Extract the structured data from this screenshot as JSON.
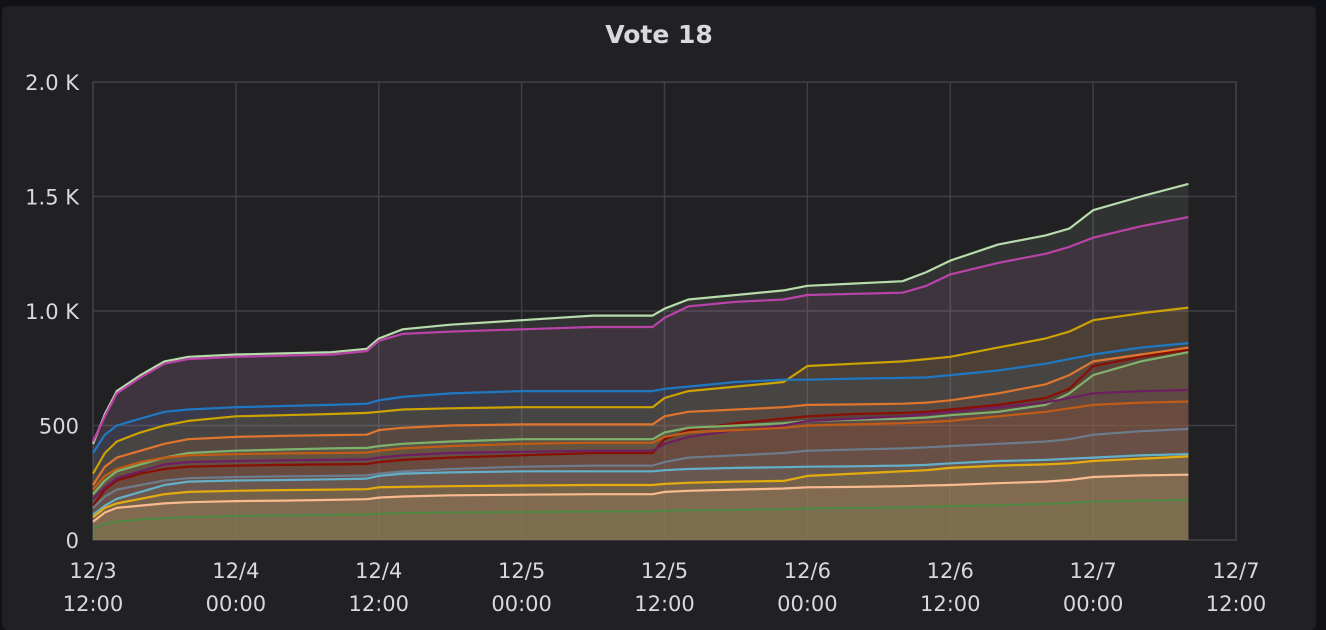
{
  "panel": {
    "title": "Vote 18"
  },
  "chart_data": {
    "type": "area",
    "title": "Vote 18",
    "xlabel": "",
    "ylabel": "",
    "ylim": [
      0,
      2000
    ],
    "grid": true,
    "legend": "none",
    "y_ticks": [
      {
        "value": 0,
        "label": "0"
      },
      {
        "value": 500,
        "label": "500"
      },
      {
        "value": 1000,
        "label": "1.0 K"
      },
      {
        "value": 1500,
        "label": "1.5 K"
      },
      {
        "value": 2000,
        "label": "2.0 K"
      }
    ],
    "x_ticks": [
      {
        "hours": 0,
        "line1": "12/3",
        "line2": "12:00"
      },
      {
        "hours": 12,
        "line1": "12/4",
        "line2": "00:00"
      },
      {
        "hours": 24,
        "line1": "12/4",
        "line2": "12:00"
      },
      {
        "hours": 36,
        "line1": "12/5",
        "line2": "00:00"
      },
      {
        "hours": 48,
        "line1": "12/5",
        "line2": "12:00"
      },
      {
        "hours": 60,
        "line1": "12/6",
        "line2": "00:00"
      },
      {
        "hours": 72,
        "line1": "12/6",
        "line2": "12:00"
      },
      {
        "hours": 84,
        "line1": "12/7",
        "line2": "00:00"
      },
      {
        "hours": 96,
        "line1": "12/7",
        "line2": "12:00"
      }
    ],
    "x": [
      0,
      1,
      2,
      4,
      6,
      8,
      12,
      16,
      20,
      23,
      24,
      26,
      30,
      36,
      42,
      47,
      48,
      50,
      54,
      58,
      60,
      64,
      68,
      70,
      72,
      76,
      80,
      82,
      84,
      88,
      92
    ],
    "series": [
      {
        "color": "#b7dbab",
        "values": [
          420,
          550,
          650,
          720,
          780,
          800,
          810,
          815,
          820,
          835,
          880,
          920,
          940,
          960,
          980,
          980,
          1010,
          1050,
          1070,
          1090,
          1110,
          1120,
          1130,
          1170,
          1220,
          1290,
          1330,
          1360,
          1440,
          1500,
          1555
        ]
      },
      {
        "color": "#ba43a9",
        "values": [
          430,
          540,
          640,
          710,
          770,
          790,
          800,
          805,
          810,
          825,
          870,
          900,
          910,
          920,
          930,
          930,
          970,
          1020,
          1040,
          1050,
          1070,
          1075,
          1080,
          1110,
          1160,
          1210,
          1250,
          1280,
          1320,
          1370,
          1410
        ]
      },
      {
        "color": "#cca300",
        "values": [
          290,
          380,
          430,
          470,
          500,
          520,
          540,
          545,
          550,
          555,
          560,
          570,
          575,
          580,
          580,
          580,
          620,
          650,
          670,
          690,
          760,
          770,
          780,
          790,
          800,
          840,
          880,
          910,
          960,
          990,
          1015
        ]
      },
      {
        "color": "#1f78c1",
        "values": [
          380,
          460,
          500,
          530,
          560,
          570,
          580,
          585,
          590,
          595,
          610,
          625,
          640,
          650,
          650,
          650,
          660,
          670,
          690,
          700,
          700,
          705,
          708,
          710,
          720,
          740,
          770,
          790,
          810,
          840,
          860
        ]
      },
      {
        "color": "#e0752d",
        "values": [
          240,
          320,
          360,
          390,
          420,
          440,
          450,
          455,
          458,
          460,
          480,
          490,
          500,
          505,
          505,
          505,
          540,
          560,
          570,
          580,
          590,
          592,
          595,
          600,
          610,
          640,
          680,
          720,
          780,
          810,
          840
        ]
      },
      {
        "color": "#890f02",
        "values": [
          150,
          220,
          260,
          290,
          310,
          320,
          325,
          328,
          330,
          332,
          340,
          350,
          360,
          370,
          380,
          380,
          440,
          480,
          510,
          530,
          540,
          550,
          555,
          560,
          570,
          590,
          620,
          660,
          760,
          800,
          830
        ]
      },
      {
        "color": "#7eb26d",
        "values": [
          200,
          260,
          300,
          330,
          360,
          380,
          390,
          395,
          400,
          402,
          410,
          420,
          430,
          440,
          440,
          440,
          470,
          490,
          500,
          510,
          520,
          525,
          530,
          535,
          545,
          560,
          590,
          640,
          720,
          780,
          820
        ]
      },
      {
        "color": "#6d1f62",
        "values": [
          180,
          230,
          270,
          300,
          330,
          340,
          345,
          348,
          350,
          352,
          360,
          370,
          380,
          385,
          390,
          390,
          420,
          450,
          480,
          500,
          520,
          530,
          540,
          550,
          560,
          580,
          600,
          620,
          640,
          650,
          655
        ]
      },
      {
        "color": "#c15c17",
        "values": [
          220,
          280,
          310,
          340,
          360,
          370,
          375,
          378,
          380,
          382,
          390,
          400,
          410,
          420,
          425,
          425,
          450,
          470,
          480,
          490,
          500,
          505,
          510,
          515,
          520,
          540,
          560,
          575,
          590,
          600,
          605
        ]
      },
      {
        "color": "#6d7c8c",
        "values": [
          140,
          190,
          220,
          240,
          260,
          270,
          275,
          278,
          280,
          282,
          290,
          300,
          310,
          320,
          325,
          325,
          340,
          360,
          370,
          380,
          390,
          395,
          400,
          405,
          410,
          420,
          430,
          440,
          460,
          475,
          485
        ]
      },
      {
        "color": "#64b0c8",
        "values": [
          110,
          150,
          180,
          210,
          240,
          255,
          260,
          262,
          265,
          268,
          280,
          290,
          295,
          300,
          300,
          300,
          305,
          310,
          315,
          318,
          320,
          322,
          325,
          328,
          335,
          345,
          350,
          355,
          360,
          370,
          375
        ]
      },
      {
        "color": "#e5ac0e",
        "values": [
          100,
          140,
          160,
          180,
          200,
          210,
          215,
          218,
          220,
          222,
          230,
          232,
          235,
          238,
          240,
          240,
          245,
          250,
          255,
          258,
          280,
          290,
          300,
          305,
          315,
          325,
          330,
          335,
          345,
          355,
          365
        ]
      },
      {
        "color": "#f9ba8f",
        "values": [
          80,
          120,
          140,
          150,
          160,
          165,
          170,
          172,
          175,
          178,
          185,
          190,
          195,
          198,
          200,
          200,
          210,
          215,
          220,
          225,
          230,
          232,
          235,
          238,
          240,
          248,
          255,
          262,
          275,
          282,
          285
        ]
      },
      {
        "color": "#508642",
        "values": [
          50,
          70,
          80,
          90,
          95,
          100,
          105,
          108,
          110,
          112,
          115,
          118,
          120,
          122,
          125,
          125,
          128,
          130,
          132,
          135,
          138,
          140,
          142,
          145,
          148,
          152,
          158,
          162,
          168,
          172,
          175
        ]
      }
    ]
  }
}
